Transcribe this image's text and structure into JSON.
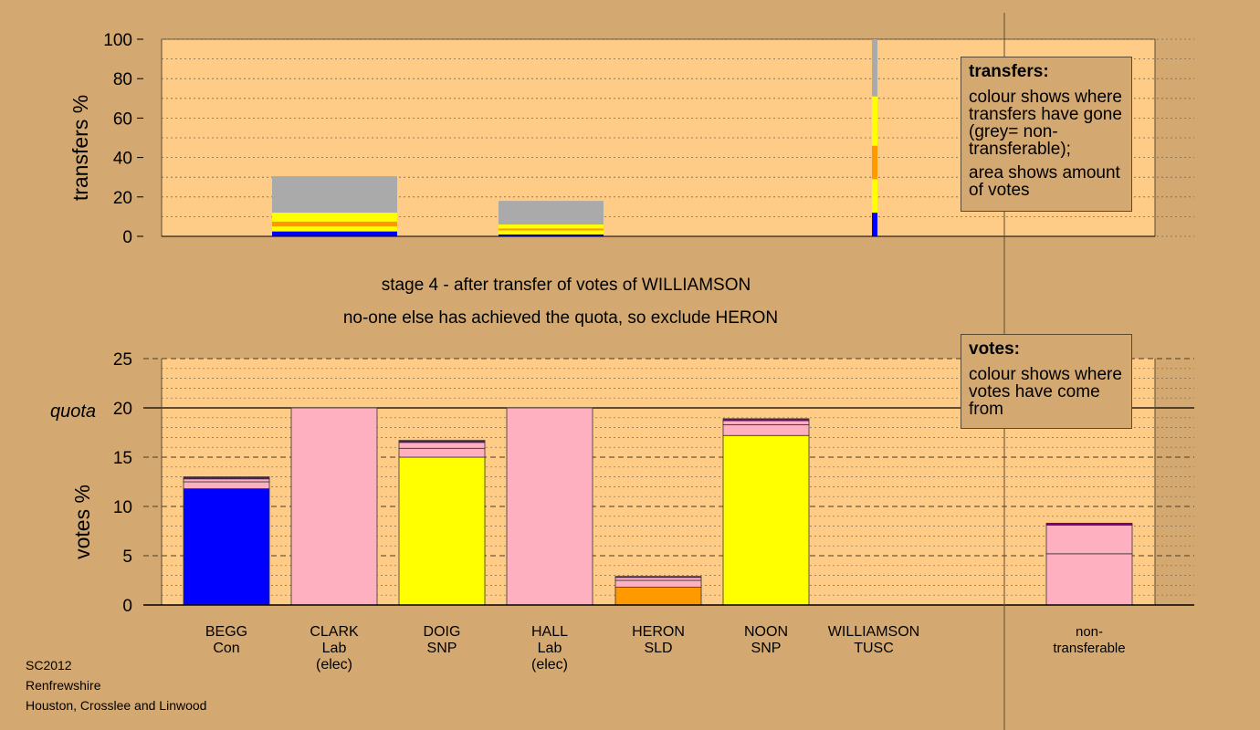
{
  "top_chart": {
    "ylabel": "transfers %",
    "yticks": [
      "0",
      "20",
      "40",
      "60",
      "80",
      "100"
    ]
  },
  "bottom_chart": {
    "ylabel": "votes %",
    "yticks": [
      "0",
      "5",
      "10",
      "15",
      "20",
      "25"
    ],
    "quota_label": "quota"
  },
  "stage_text": {
    "line1": "stage 4 - after transfer of votes of WILLIAMSON",
    "line2": "no-one else has achieved the quota, so exclude HERON"
  },
  "legend_transfers": {
    "title": "transfers:",
    "text1": "colour shows where transfers have gone (grey= non-transferable);",
    "text2": "area shows amount of votes"
  },
  "legend_votes": {
    "title": "votes:",
    "text1": "colour shows where votes have come from"
  },
  "footer": {
    "line1": "SC2012",
    "line2": "Renfrewshire",
    "line3": "Houston, Crosslee and Linwood"
  },
  "colors": {
    "Con": "#0000FF",
    "Lab": "#FFB0C0",
    "SNP": "#FFFF00",
    "SLD": "#FF9900",
    "TUSC": "#800080",
    "nontransferable": "#AAAAAA",
    "panel": "#FFCC88",
    "background": "#D4A971"
  },
  "chart_data": [
    {
      "type": "bar",
      "title": "",
      "ylabel": "transfers %",
      "ylim": [
        0,
        100
      ],
      "grid": true,
      "categories": [
        "BEGG",
        "CLARK",
        "DOIG",
        "HALL",
        "HERON",
        "NOON",
        "WILLIAMSON"
      ],
      "transfers": [
        {
          "candidate": "CLARK",
          "segments": [
            {
              "to": "Con",
              "value": 2.5
            },
            {
              "to": "SNP",
              "value": 2.5
            },
            {
              "to": "SLD",
              "value": 2.5
            },
            {
              "to": "SNP",
              "value": 4.5
            },
            {
              "to": "nontransferable",
              "value": 18.5
            }
          ]
        },
        {
          "candidate": "HALL",
          "segments": [
            {
              "to": "Con",
              "value": 1.0
            },
            {
              "to": "SNP",
              "value": 2.0
            },
            {
              "to": "SLD",
              "value": 1.0
            },
            {
              "to": "SNP",
              "value": 2.0
            },
            {
              "to": "nontransferable",
              "value": 12.0
            }
          ]
        },
        {
          "candidate": "WILLIAMSON",
          "segments": [
            {
              "to": "Con",
              "value": 12
            },
            {
              "to": "SNP",
              "value": 17
            },
            {
              "to": "SLD",
              "value": 17
            },
            {
              "to": "SNP",
              "value": 25
            },
            {
              "to": "nontransferable",
              "value": 29
            }
          ]
        }
      ]
    },
    {
      "type": "bar",
      "title": "",
      "ylabel": "votes %",
      "ylim": [
        0,
        25
      ],
      "quota": 20,
      "grid": true,
      "categories": [
        {
          "name": "BEGG",
          "party": "Con",
          "note": ""
        },
        {
          "name": "CLARK",
          "party": "Lab",
          "note": "(elec)"
        },
        {
          "name": "DOIG",
          "party": "SNP",
          "note": ""
        },
        {
          "name": "HALL",
          "party": "Lab",
          "note": "(elec)"
        },
        {
          "name": "HERON",
          "party": "SLD",
          "note": ""
        },
        {
          "name": "NOON",
          "party": "SNP",
          "note": ""
        },
        {
          "name": "WILLIAMSON",
          "party": "TUSC",
          "note": ""
        },
        {
          "name": "non-",
          "party": "transferable",
          "note": ""
        }
      ],
      "stacks": [
        [
          {
            "from": "Con",
            "value": 11.8
          },
          {
            "from": "Lab",
            "value": 0.7
          },
          {
            "from": "Lab",
            "value": 0.3
          },
          {
            "from": "TUSC",
            "value": 0.2
          }
        ],
        [
          {
            "from": "Lab",
            "value": 20.0
          }
        ],
        [
          {
            "from": "SNP",
            "value": 15.0
          },
          {
            "from": "Lab",
            "value": 0.9
          },
          {
            "from": "Lab",
            "value": 0.6
          },
          {
            "from": "TUSC",
            "value": 0.2
          }
        ],
        [
          {
            "from": "Lab",
            "value": 20.0
          }
        ],
        [
          {
            "from": "SLD",
            "value": 1.8
          },
          {
            "from": "Lab",
            "value": 0.7
          },
          {
            "from": "Lab",
            "value": 0.3
          },
          {
            "from": "TUSC",
            "value": 0.1
          }
        ],
        [
          {
            "from": "SNP",
            "value": 17.2
          },
          {
            "from": "Lab",
            "value": 1.1
          },
          {
            "from": "Lab",
            "value": 0.4
          },
          {
            "from": "TUSC",
            "value": 0.2
          }
        ],
        [
          {
            "from": "TUSC",
            "value": 0.0
          }
        ],
        [
          {
            "from": "Lab",
            "value": 5.2
          },
          {
            "from": "Lab",
            "value": 2.9
          },
          {
            "from": "TUSC",
            "value": 0.2
          }
        ]
      ]
    }
  ]
}
